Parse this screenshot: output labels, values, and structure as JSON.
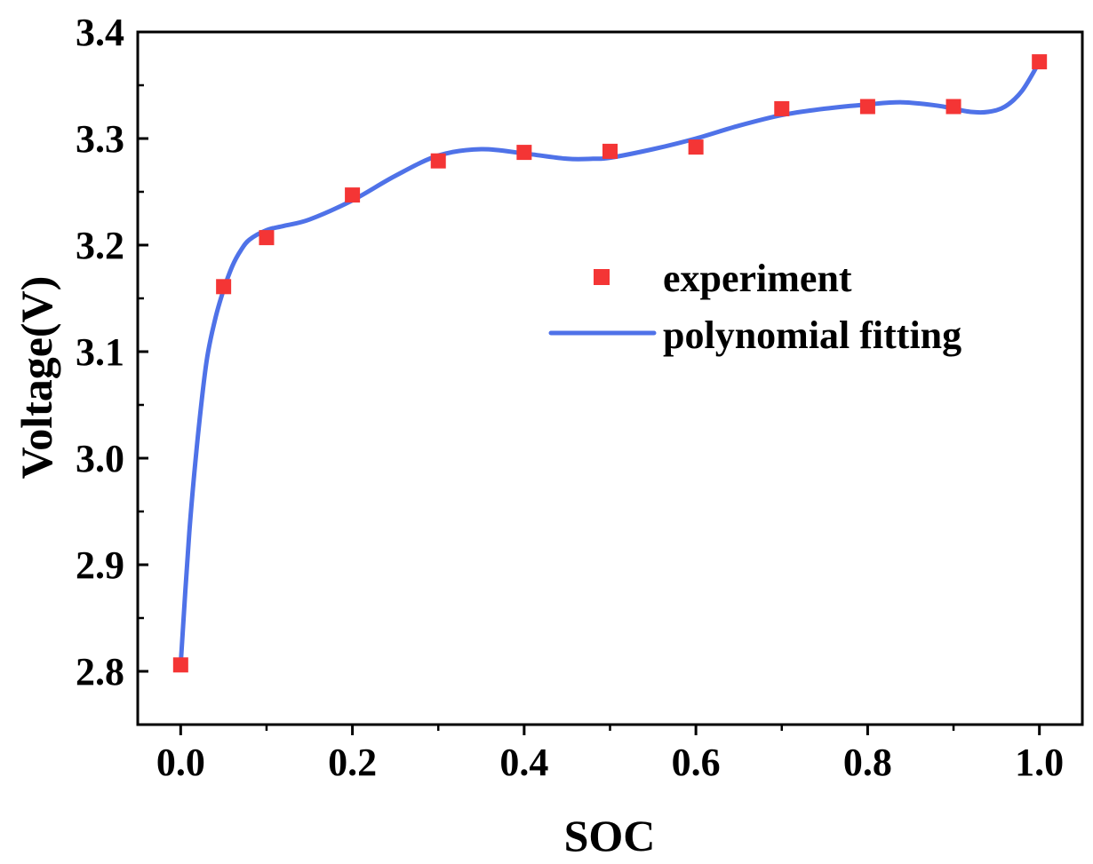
{
  "chart_data": {
    "type": "line",
    "xlabel": "SOC",
    "ylabel": "Voltage(V)",
    "xlim": [
      -0.05,
      1.05
    ],
    "ylim": [
      2.75,
      3.4
    ],
    "xticks": [
      0.0,
      0.2,
      0.4,
      0.6,
      0.8,
      1.0
    ],
    "xtick_labels": [
      "0.0",
      "0.2",
      "0.4",
      "0.6",
      "0.8",
      "1.0"
    ],
    "yticks": [
      2.8,
      2.9,
      3.0,
      3.1,
      3.2,
      3.3,
      3.4
    ],
    "ytick_labels": [
      "2.8",
      "2.9",
      "3.0",
      "3.1",
      "3.2",
      "3.3",
      "3.4"
    ],
    "grid": false,
    "legend_position": "center-right",
    "series": [
      {
        "name": "experiment",
        "kind": "scatter",
        "marker": "square",
        "color": "#f43535",
        "x": [
          0.0,
          0.05,
          0.1,
          0.2,
          0.3,
          0.4,
          0.5,
          0.6,
          0.7,
          0.8,
          0.9,
          1.0
        ],
        "y": [
          2.806,
          3.161,
          3.207,
          3.247,
          3.279,
          3.287,
          3.288,
          3.292,
          3.328,
          3.33,
          3.33,
          3.372
        ]
      },
      {
        "name": "polynomial fitting",
        "kind": "line",
        "color": "#4f72e8",
        "x": [
          0.0,
          0.01,
          0.02,
          0.03,
          0.04,
          0.05,
          0.06,
          0.07,
          0.08,
          0.1,
          0.12,
          0.15,
          0.2,
          0.25,
          0.3,
          0.35,
          0.4,
          0.45,
          0.48,
          0.5,
          0.55,
          0.6,
          0.65,
          0.7,
          0.75,
          0.8,
          0.84,
          0.88,
          0.9,
          0.92,
          0.94,
          0.96,
          0.98,
          1.0
        ],
        "y": [
          2.806,
          2.93,
          3.02,
          3.09,
          3.13,
          3.158,
          3.18,
          3.195,
          3.205,
          3.214,
          3.218,
          3.224,
          3.242,
          3.265,
          3.284,
          3.29,
          3.286,
          3.281,
          3.281,
          3.282,
          3.29,
          3.3,
          3.312,
          3.322,
          3.328,
          3.332,
          3.334,
          3.331,
          3.328,
          3.325,
          3.325,
          3.33,
          3.345,
          3.372
        ]
      }
    ]
  }
}
